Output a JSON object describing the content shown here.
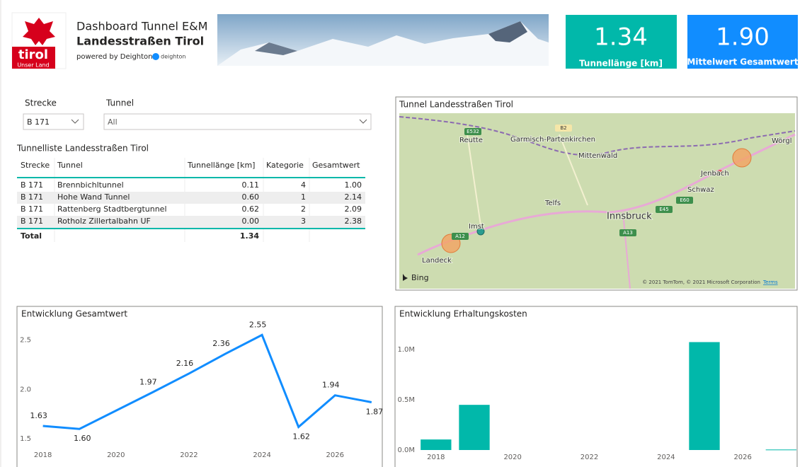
{
  "header": {
    "title": "Dashboard Tunnel E&M",
    "subtitle": "Landesstraßen Tirol",
    "powered": "powered by Deighton",
    "logo_text": "tirol",
    "logo_sub": "Unser Land",
    "brand": "deighton"
  },
  "kpis": [
    {
      "value": "1.34",
      "label": "Tunnellänge [km]"
    },
    {
      "value": "1.90",
      "label": "Mittelwert Gesamtwert"
    }
  ],
  "filters": [
    {
      "label": "Strecke",
      "value": "B 171"
    },
    {
      "label": "Tunnel",
      "value": "All"
    }
  ],
  "table": {
    "title": "Tunnelliste Landesstraßen Tirol",
    "columns": [
      "Strecke",
      "Tunnel",
      "Tunnellänge [km]",
      "Kategorie",
      "Gesamtwert"
    ],
    "rows": [
      [
        "B 171",
        "Brennbichltunnel",
        "0.11",
        "4",
        "1.00"
      ],
      [
        "B 171",
        "Hohe Wand Tunnel",
        "0.60",
        "1",
        "2.14"
      ],
      [
        "B 171",
        "Rattenberg Stadtbergtunnel",
        "0.62",
        "2",
        "2.09"
      ],
      [
        "B 171",
        "Rotholz Zillertalbahn UF",
        "0.00",
        "3",
        "2.38"
      ]
    ],
    "total": {
      "label": "Total",
      "value": "1.34"
    }
  },
  "map": {
    "title": "Tunnel Landesstraßen Tirol",
    "places": [
      "Reutte",
      "Garmisch-Partenkirchen",
      "Mittenwald",
      "Jenbach",
      "Schwaz",
      "Wörgl",
      "Telfs",
      "Innsbruck",
      "Imst",
      "Landeck"
    ],
    "roads": [
      "E532",
      "B2",
      "E45",
      "E60",
      "A12",
      "A13"
    ],
    "provider": "Bing",
    "copyright": "© 2021 TomTom, © 2021 Microsoft Corporation",
    "terms": "Terms"
  },
  "chart_data": [
    {
      "type": "line",
      "title": "Entwicklung Gesamtwert",
      "x": [
        2018,
        2019,
        2021,
        2022,
        2023,
        2024,
        2025,
        2026,
        2027
      ],
      "values": [
        1.63,
        1.6,
        1.97,
        2.16,
        2.36,
        2.55,
        1.62,
        1.94,
        1.87
      ],
      "value_labels": [
        "1.63",
        "1.60",
        "1.97",
        "2.16",
        "2.36",
        "2.55",
        "1.62",
        "1.94",
        "1.87"
      ],
      "color": "#118DFF",
      "xlim": [
        2017.6,
        2027.1
      ],
      "xticks": [
        2018,
        2020,
        2022,
        2024,
        2026
      ],
      "ylim": [
        1.43,
        2.61
      ],
      "yticks": [
        1.5,
        {
          "value": 2,
          "label": "2.0"
        },
        2.5
      ],
      "grid": false
    },
    {
      "type": "bar",
      "title": "Entwicklung Erhaltungskosten",
      "x": [
        2018,
        2019,
        2025,
        2027
      ],
      "values": [
        105000,
        450000,
        1075000,
        5000
      ],
      "color": "#01B8AA",
      "xlim": [
        2017.56,
        2027.4
      ],
      "xticks": [
        2018,
        2020,
        2022,
        2024,
        2026
      ],
      "ylim": [
        0,
        1170000
      ],
      "yticks": [
        {
          "value": 0,
          "label": "0.0M"
        },
        {
          "value": 500000,
          "label": "0.5M"
        },
        {
          "value": 1000000,
          "label": "1.0M"
        }
      ],
      "grid": false
    }
  ]
}
